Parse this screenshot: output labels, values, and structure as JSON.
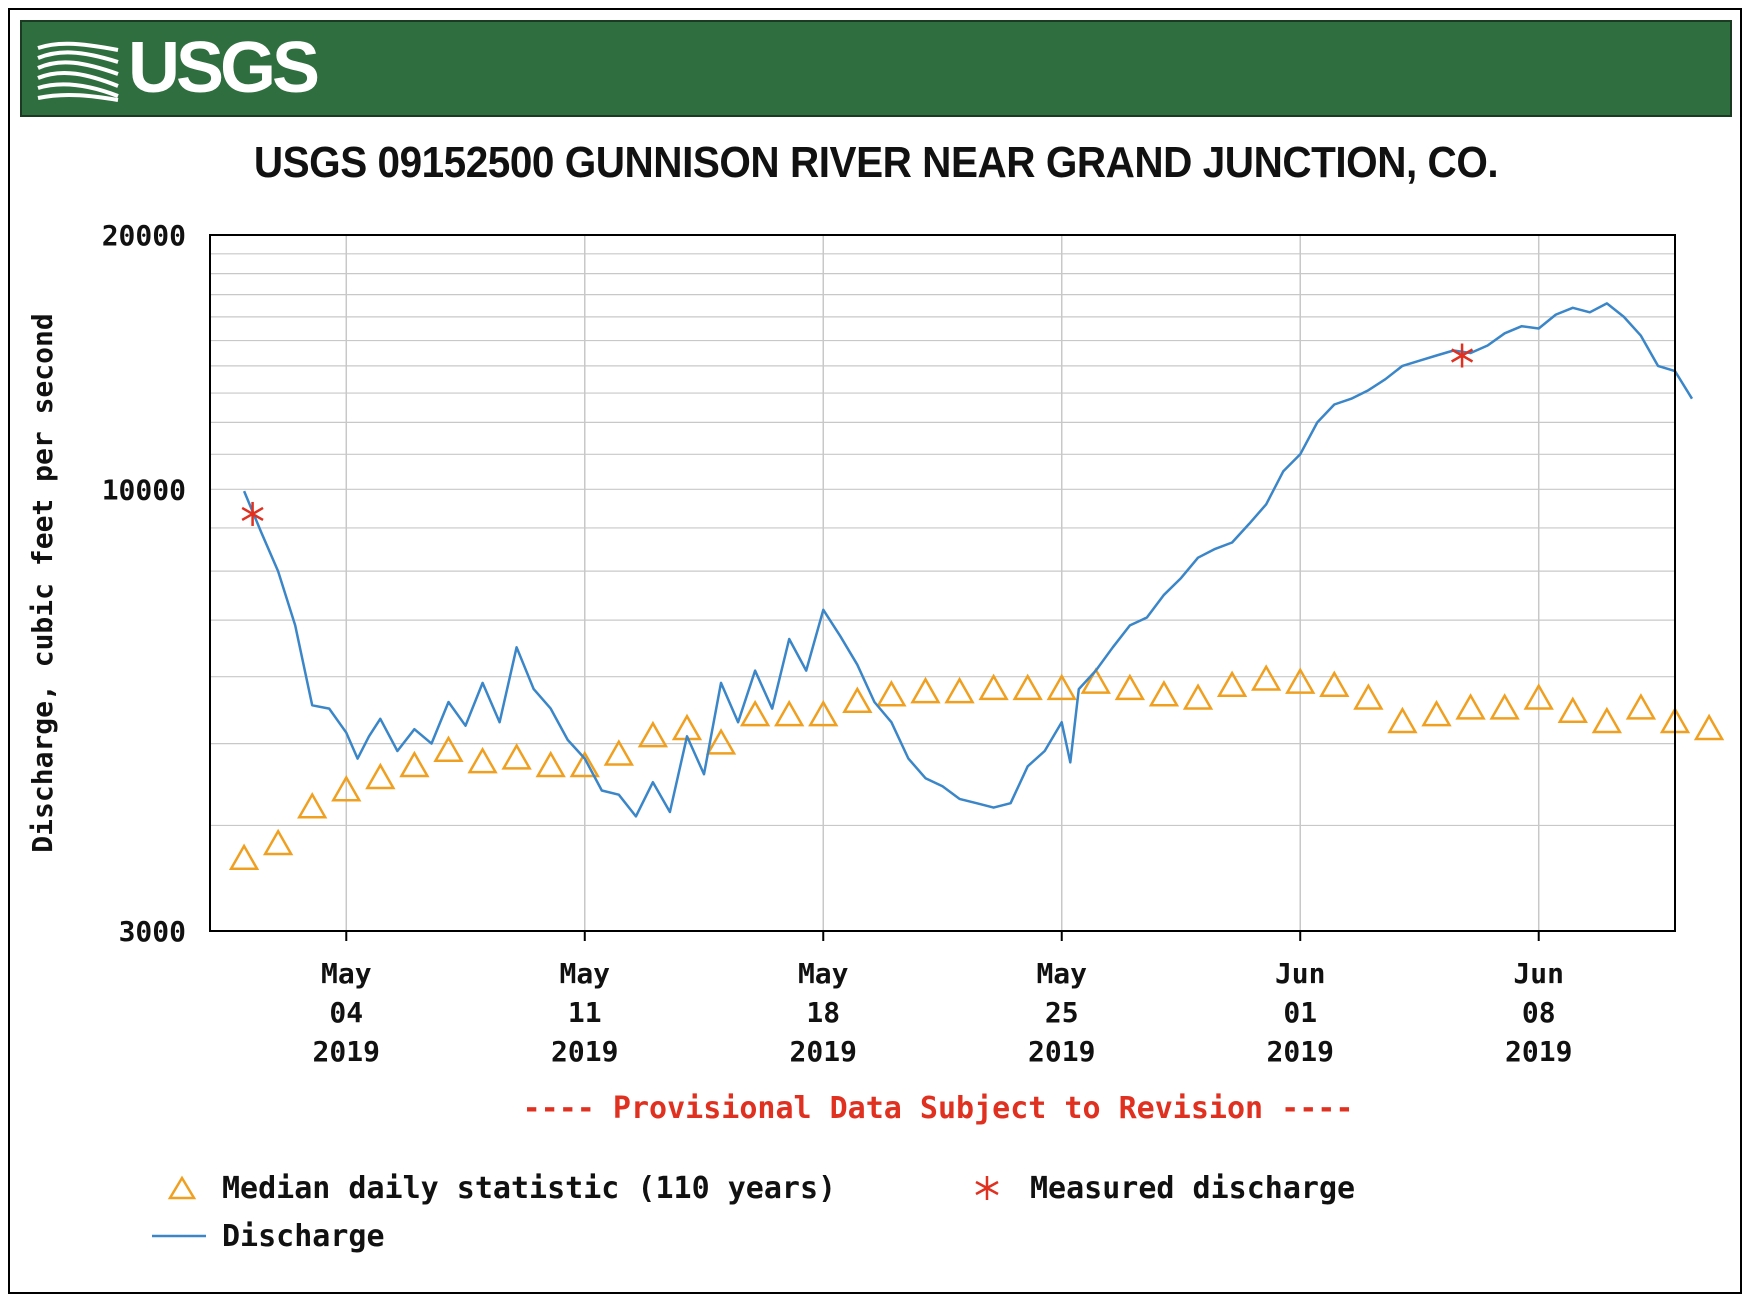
{
  "header": {
    "logo_text": "USGS",
    "title": "USGS 09152500 GUNNISON RIVER NEAR GRAND JUNCTION, CO."
  },
  "colors": {
    "banner": "#2f6f3f",
    "discharge": "#3a86c8",
    "median": "#f0a020",
    "measured": "#e03020",
    "provisional": "#e03020"
  },
  "provisional_note": "---- Provisional Data Subject to Revision ----",
  "legend": {
    "median_label": "Median daily statistic (110 years)",
    "measured_label": "Measured discharge",
    "discharge_label": "Discharge"
  },
  "chart_data": {
    "type": "line",
    "ylabel": "Discharge, cubic feet per second",
    "y_scale": "log",
    "ylim": [
      3000,
      20000
    ],
    "y_ticks": [
      {
        "value": 3000,
        "label": "3000"
      },
      {
        "value": 10000,
        "label": "10000"
      },
      {
        "value": 20000,
        "label": "20000"
      }
    ],
    "x_range": [
      "2019-04-30",
      "2019-06-12"
    ],
    "x_ticks": [
      {
        "date": "2019-05-04",
        "label": [
          "May",
          "04",
          "2019"
        ]
      },
      {
        "date": "2019-05-11",
        "label": [
          "May",
          "11",
          "2019"
        ]
      },
      {
        "date": "2019-05-18",
        "label": [
          "May",
          "18",
          "2019"
        ]
      },
      {
        "date": "2019-05-25",
        "label": [
          "May",
          "25",
          "2019"
        ]
      },
      {
        "date": "2019-06-01",
        "label": [
          "Jun",
          "01",
          "2019"
        ]
      },
      {
        "date": "2019-06-08",
        "label": [
          "Jun",
          "08",
          "2019"
        ]
      }
    ],
    "grid": true,
    "series": [
      {
        "name": "Discharge",
        "style": "line",
        "points": [
          [
            "2019-05-01T00:00",
            9950
          ],
          [
            "2019-05-01T12:00",
            8900
          ],
          [
            "2019-05-02T00:00",
            8000
          ],
          [
            "2019-05-02T12:00",
            6900
          ],
          [
            "2019-05-03T00:00",
            5550
          ],
          [
            "2019-05-03T12:00",
            5500
          ],
          [
            "2019-05-04T00:00",
            5150
          ],
          [
            "2019-05-04T08:00",
            4800
          ],
          [
            "2019-05-04T16:00",
            5100
          ],
          [
            "2019-05-05T00:00",
            5350
          ],
          [
            "2019-05-05T12:00",
            4900
          ],
          [
            "2019-05-06T00:00",
            5200
          ],
          [
            "2019-05-06T12:00",
            5000
          ],
          [
            "2019-05-07T00:00",
            5600
          ],
          [
            "2019-05-07T12:00",
            5250
          ],
          [
            "2019-05-08T00:00",
            5900
          ],
          [
            "2019-05-08T12:00",
            5300
          ],
          [
            "2019-05-09T00:00",
            6500
          ],
          [
            "2019-05-09T12:00",
            5800
          ],
          [
            "2019-05-10T00:00",
            5500
          ],
          [
            "2019-05-10T12:00",
            5050
          ],
          [
            "2019-05-11T00:00",
            4800
          ],
          [
            "2019-05-11T12:00",
            4400
          ],
          [
            "2019-05-12T00:00",
            4350
          ],
          [
            "2019-05-12T12:00",
            4100
          ],
          [
            "2019-05-13T00:00",
            4500
          ],
          [
            "2019-05-13T12:00",
            4150
          ],
          [
            "2019-05-14T00:00",
            5100
          ],
          [
            "2019-05-14T12:00",
            4600
          ],
          [
            "2019-05-15T00:00",
            5900
          ],
          [
            "2019-05-15T12:00",
            5300
          ],
          [
            "2019-05-16T00:00",
            6100
          ],
          [
            "2019-05-16T12:00",
            5500
          ],
          [
            "2019-05-17T00:00",
            6650
          ],
          [
            "2019-05-17T12:00",
            6100
          ],
          [
            "2019-05-18T00:00",
            7200
          ],
          [
            "2019-05-18T12:00",
            6700
          ],
          [
            "2019-05-19T00:00",
            6200
          ],
          [
            "2019-05-19T12:00",
            5600
          ],
          [
            "2019-05-20T00:00",
            5300
          ],
          [
            "2019-05-20T12:00",
            4800
          ],
          [
            "2019-05-21T00:00",
            4550
          ],
          [
            "2019-05-21T12:00",
            4450
          ],
          [
            "2019-05-22T00:00",
            4300
          ],
          [
            "2019-05-22T12:00",
            4250
          ],
          [
            "2019-05-23T00:00",
            4200
          ],
          [
            "2019-05-23T12:00",
            4250
          ],
          [
            "2019-05-24T00:00",
            4700
          ],
          [
            "2019-05-24T12:00",
            4900
          ],
          [
            "2019-05-25T00:00",
            5300
          ],
          [
            "2019-05-25T06:00",
            4750
          ],
          [
            "2019-05-25T12:00",
            5800
          ],
          [
            "2019-05-26T00:00",
            6100
          ],
          [
            "2019-05-26T12:00",
            6500
          ],
          [
            "2019-05-27T00:00",
            6900
          ],
          [
            "2019-05-27T12:00",
            7050
          ],
          [
            "2019-05-28T00:00",
            7500
          ],
          [
            "2019-05-28T12:00",
            7850
          ],
          [
            "2019-05-29T00:00",
            8300
          ],
          [
            "2019-05-29T12:00",
            8500
          ],
          [
            "2019-05-30T00:00",
            8650
          ],
          [
            "2019-05-30T12:00",
            9100
          ],
          [
            "2019-05-31T00:00",
            9600
          ],
          [
            "2019-05-31T12:00",
            10500
          ],
          [
            "2019-06-01T00:00",
            11000
          ],
          [
            "2019-06-01T12:00",
            12000
          ],
          [
            "2019-06-02T00:00",
            12600
          ],
          [
            "2019-06-02T12:00",
            12800
          ],
          [
            "2019-06-03T00:00",
            13100
          ],
          [
            "2019-06-03T12:00",
            13500
          ],
          [
            "2019-06-04T00:00",
            14000
          ],
          [
            "2019-06-04T12:00",
            14200
          ],
          [
            "2019-06-05T00:00",
            14400
          ],
          [
            "2019-06-05T12:00",
            14600
          ],
          [
            "2019-06-06T00:00",
            14500
          ],
          [
            "2019-06-06T12:00",
            14800
          ],
          [
            "2019-06-07T00:00",
            15300
          ],
          [
            "2019-06-07T12:00",
            15600
          ],
          [
            "2019-06-08T00:00",
            15500
          ],
          [
            "2019-06-08T12:00",
            16100
          ],
          [
            "2019-06-09T00:00",
            16400
          ],
          [
            "2019-06-09T12:00",
            16200
          ],
          [
            "2019-06-10T00:00",
            16600
          ],
          [
            "2019-06-10T12:00",
            16000
          ],
          [
            "2019-06-11T00:00",
            15200
          ],
          [
            "2019-06-11T12:00",
            14000
          ],
          [
            "2019-06-12T00:00",
            13800
          ],
          [
            "2019-06-12T12:00",
            12800
          ]
        ]
      },
      {
        "name": "Median daily statistic (110 years)",
        "style": "triangle",
        "points": [
          [
            "2019-05-01",
            3650
          ],
          [
            "2019-05-02",
            3800
          ],
          [
            "2019-05-03",
            4200
          ],
          [
            "2019-05-04",
            4400
          ],
          [
            "2019-05-05",
            4550
          ],
          [
            "2019-05-06",
            4700
          ],
          [
            "2019-05-07",
            4900
          ],
          [
            "2019-05-08",
            4750
          ],
          [
            "2019-05-09",
            4800
          ],
          [
            "2019-05-10",
            4700
          ],
          [
            "2019-05-11",
            4700
          ],
          [
            "2019-05-12",
            4850
          ],
          [
            "2019-05-13",
            5100
          ],
          [
            "2019-05-14",
            5200
          ],
          [
            "2019-05-15",
            5000
          ],
          [
            "2019-05-16",
            5400
          ],
          [
            "2019-05-17",
            5400
          ],
          [
            "2019-05-18",
            5400
          ],
          [
            "2019-05-19",
            5600
          ],
          [
            "2019-05-20",
            5700
          ],
          [
            "2019-05-21",
            5750
          ],
          [
            "2019-05-22",
            5750
          ],
          [
            "2019-05-23",
            5800
          ],
          [
            "2019-05-24",
            5800
          ],
          [
            "2019-05-25",
            5800
          ],
          [
            "2019-05-26",
            5900
          ],
          [
            "2019-05-27",
            5800
          ],
          [
            "2019-05-28",
            5700
          ],
          [
            "2019-05-29",
            5650
          ],
          [
            "2019-05-30",
            5850
          ],
          [
            "2019-05-31",
            5950
          ],
          [
            "2019-06-01",
            5900
          ],
          [
            "2019-06-02",
            5850
          ],
          [
            "2019-06-03",
            5650
          ],
          [
            "2019-06-04",
            5300
          ],
          [
            "2019-06-05",
            5400
          ],
          [
            "2019-06-06",
            5500
          ],
          [
            "2019-06-07",
            5500
          ],
          [
            "2019-06-08",
            5650
          ],
          [
            "2019-06-09",
            5450
          ],
          [
            "2019-06-10",
            5300
          ],
          [
            "2019-06-11",
            5500
          ],
          [
            "2019-06-12",
            5300
          ],
          [
            "2019-06-13",
            5200
          ]
        ]
      },
      {
        "name": "Measured discharge",
        "style": "asterisk",
        "points": [
          [
            "2019-05-01T06:00",
            9350
          ],
          [
            "2019-06-05T18:00",
            14400
          ]
        ]
      }
    ]
  }
}
